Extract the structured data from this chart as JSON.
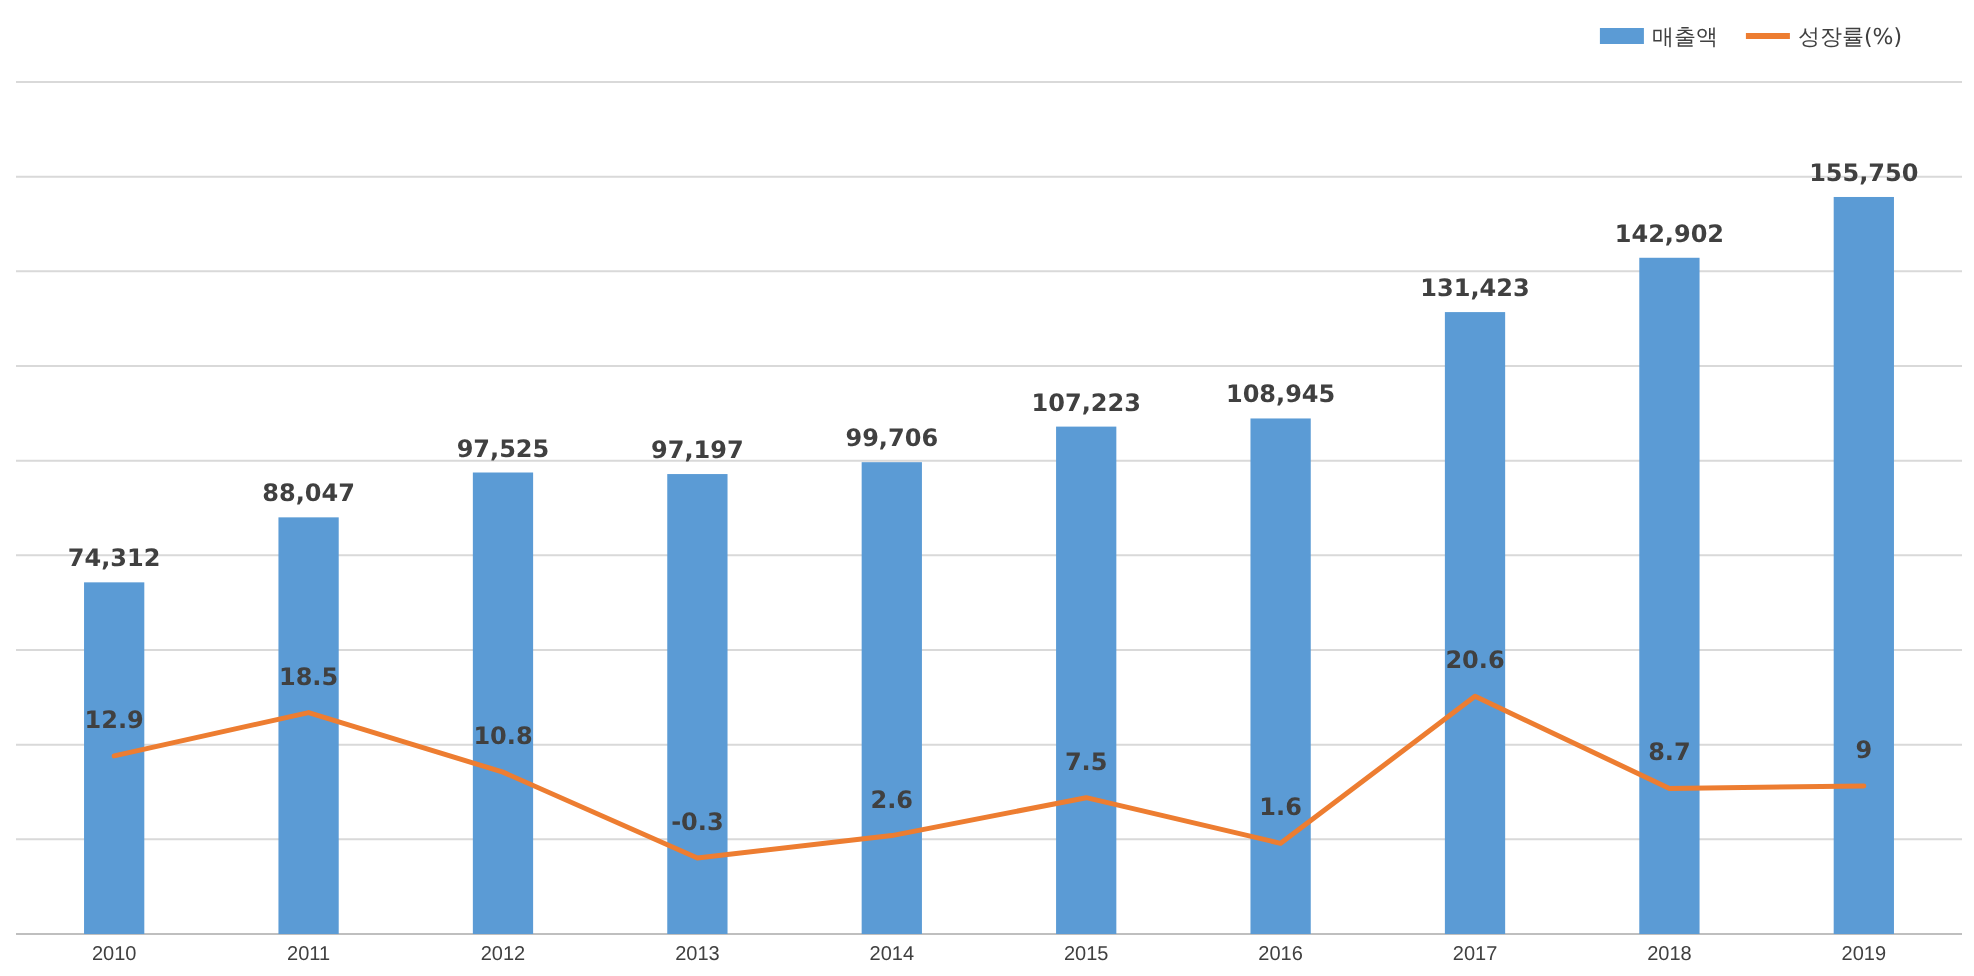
{
  "chart_data": {
    "type": "bar",
    "categories": [
      "2010",
      "2011",
      "2012",
      "2013",
      "2014",
      "2015",
      "2016",
      "2017",
      "2018",
      "2019"
    ],
    "series": [
      {
        "name": "매출액",
        "color": "#5b9bd5",
        "values": [
          74312,
          88047,
          97525,
          97197,
          99706,
          107223,
          108945,
          131423,
          142902,
          155750
        ],
        "value_labels": [
          "74,312",
          "88,047",
          "97,525",
          "97,197",
          "99,706",
          "107,223",
          "108,945",
          "131,423",
          "142,902",
          "155,750"
        ]
      },
      {
        "name": "성장률(%)",
        "type": "line",
        "axis": "y2",
        "color": "#ed7d31",
        "values": [
          12.9,
          18.5,
          10.8,
          -0.3,
          2.6,
          7.5,
          1.6,
          20.6,
          8.7,
          9
        ],
        "value_labels": [
          "12.9",
          "18.5",
          "10.8",
          "-0.3",
          "2.6",
          "7.5",
          "1.6",
          "20.6",
          "8.7",
          "9"
        ]
      }
    ],
    "tick_labels": "x",
    "grid": "y",
    "legend": "top right"
  }
}
